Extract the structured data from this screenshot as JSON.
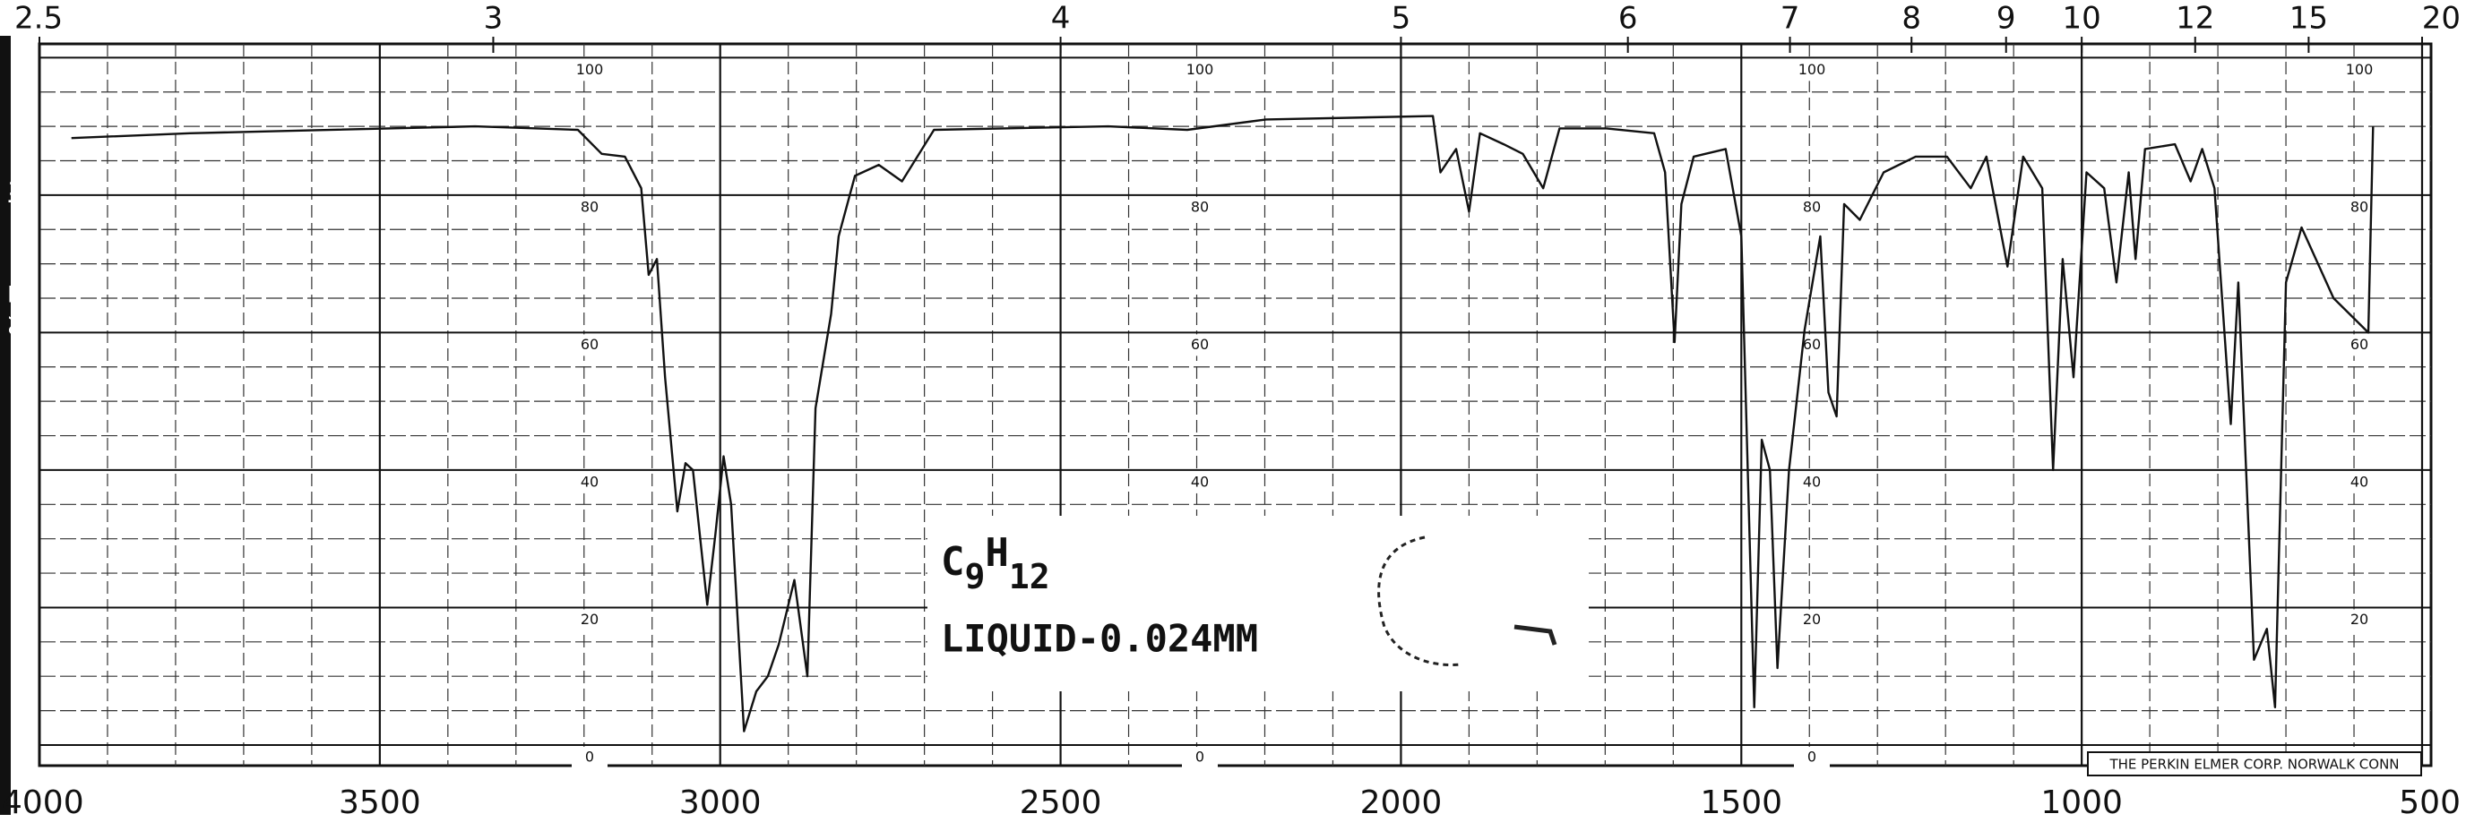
{
  "chart_data": {
    "type": "line",
    "y_label": "% Transmittance",
    "formula": [
      "C",
      "9",
      "H",
      "12"
    ],
    "sample": "LIQUID-0.024MM",
    "credit": "THE PERKIN ELMER CORP. NORWALK CONN",
    "xlim": [
      4000,
      500
    ],
    "xticks": [
      4000,
      3500,
      3000,
      2500,
      2000,
      1500,
      1000,
      500
    ],
    "x2ticks": [
      2.5,
      3,
      4,
      5,
      6,
      7,
      8,
      9,
      10,
      12,
      15,
      20
    ],
    "ylim": [
      -3,
      102
    ],
    "yticks": [
      0,
      20,
      40,
      60,
      80,
      100
    ],
    "grid": true,
    "x": [
      3953,
      3779,
      3360,
      3209,
      3174,
      3140,
      3116,
      3105,
      3093,
      3081,
      3063,
      3051,
      3040,
      3019,
      3007,
      2995,
      2984,
      2965,
      2947,
      2930,
      2914,
      2891,
      2872,
      2860,
      2837,
      2826,
      2802,
      2767,
      2733,
      2686,
      2430,
      2314,
      2198,
      1953,
      1942,
      1919,
      1900,
      1884,
      1849,
      1821,
      1791,
      1767,
      1698,
      1628,
      1612,
      1598,
      1588,
      1570,
      1523,
      1500,
      1481,
      1470,
      1458,
      1447,
      1430,
      1407,
      1384,
      1372,
      1360,
      1349,
      1326,
      1291,
      1244,
      1198,
      1163,
      1140,
      1109,
      1086,
      1058,
      1042,
      1028,
      1012,
      993,
      967,
      949,
      931,
      921,
      907,
      863,
      840,
      823,
      805,
      781,
      770,
      747,
      728,
      716,
      700,
      677,
      630,
      579,
      572
    ],
    "series": [
      {
        "color": "#111111",
        "values": [
          88.3,
          89,
          90,
          89.5,
          86,
          85.6,
          81,
          68.4,
          70.7,
          53.5,
          34,
          41,
          40,
          20.4,
          30.7,
          42,
          35,
          2,
          7.8,
          10,
          14.6,
          24,
          10,
          49,
          62.7,
          74,
          82.8,
          84.4,
          82,
          89.5,
          90,
          89.5,
          91,
          91.5,
          83.3,
          86.7,
          77.6,
          89,
          87.4,
          86,
          81,
          89.7,
          89.7,
          89,
          83.3,
          58.6,
          78.7,
          85.6,
          86.7,
          74,
          5.5,
          44.4,
          40,
          11.2,
          40,
          60.4,
          74,
          51.3,
          47.8,
          78.7,
          76.4,
          83.3,
          85.6,
          85.6,
          81,
          85.6,
          69.6,
          85.6,
          81,
          40,
          70.7,
          53.5,
          83.3,
          81,
          67.3,
          83.3,
          70.7,
          86.7,
          87.4,
          82,
          86.7,
          81,
          46.7,
          67.3,
          12.4,
          16.9,
          5.5,
          67.3,
          75.3,
          65,
          60,
          90
        ]
      }
    ]
  }
}
